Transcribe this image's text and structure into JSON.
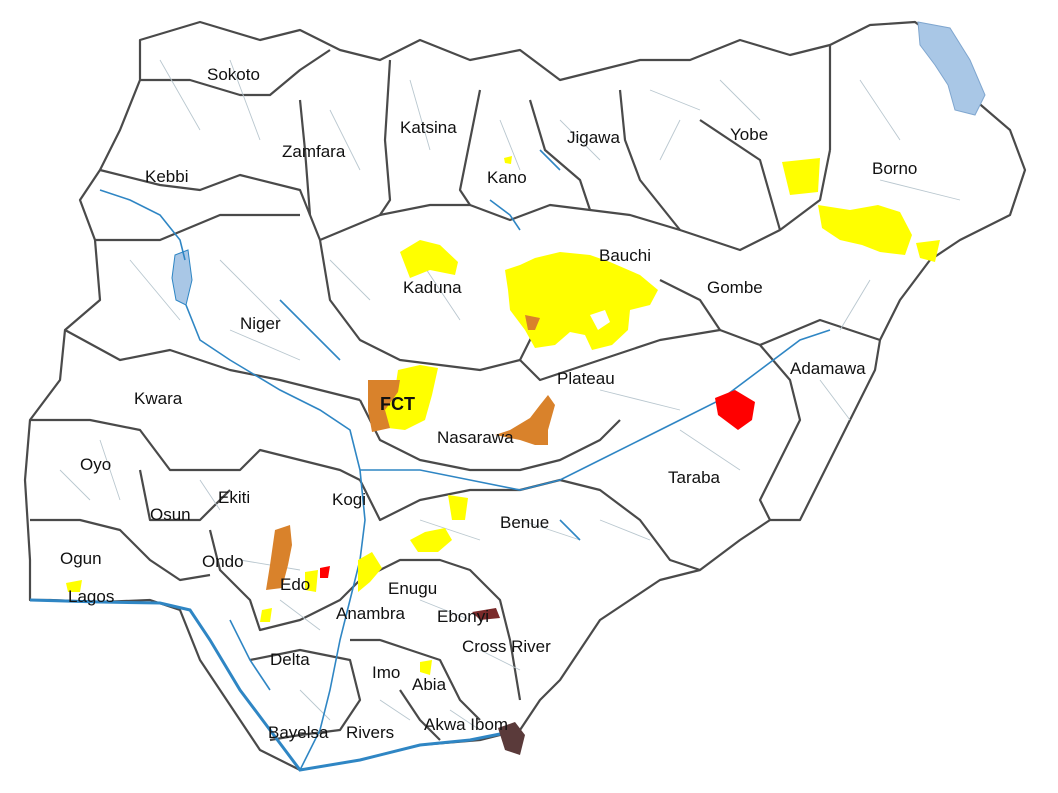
{
  "colors": {
    "land": "#ffffff",
    "border": "#4a4a4a",
    "lga_lines": "#b9c7cf",
    "water": "#2f86c4",
    "lake": "#a9c7e6",
    "highlight_yellow": "#ffff00",
    "highlight_orange": "#d9822b",
    "highlight_red": "#ff0000",
    "highlight_maroon": "#7a2a2a",
    "highlight_brown": "#5a3a3a"
  },
  "states": [
    {
      "name": "Sokoto"
    },
    {
      "name": "Zamfara"
    },
    {
      "name": "Katsina"
    },
    {
      "name": "Jigawa"
    },
    {
      "name": "Yobe"
    },
    {
      "name": "Borno"
    },
    {
      "name": "Kebbi"
    },
    {
      "name": "Kano"
    },
    {
      "name": "Bauchi"
    },
    {
      "name": "Kaduna"
    },
    {
      "name": "Gombe"
    },
    {
      "name": "Niger"
    },
    {
      "name": "Adamawa"
    },
    {
      "name": "Plateau"
    },
    {
      "name": "FCT"
    },
    {
      "name": "Kwara"
    },
    {
      "name": "Nasarawa"
    },
    {
      "name": "Oyo"
    },
    {
      "name": "Taraba"
    },
    {
      "name": "Kogi"
    },
    {
      "name": "Ekiti"
    },
    {
      "name": "Osun"
    },
    {
      "name": "Benue"
    },
    {
      "name": "Ogun"
    },
    {
      "name": "Ondo"
    },
    {
      "name": "Edo"
    },
    {
      "name": "Enugu"
    },
    {
      "name": "Lagos"
    },
    {
      "name": "Anambra"
    },
    {
      "name": "Ebonyi"
    },
    {
      "name": "Cross River"
    },
    {
      "name": "Delta"
    },
    {
      "name": "Imo"
    },
    {
      "name": "Abia"
    },
    {
      "name": "Bayelsa"
    },
    {
      "name": "Rivers"
    },
    {
      "name": "Akwa Ibom"
    }
  ]
}
